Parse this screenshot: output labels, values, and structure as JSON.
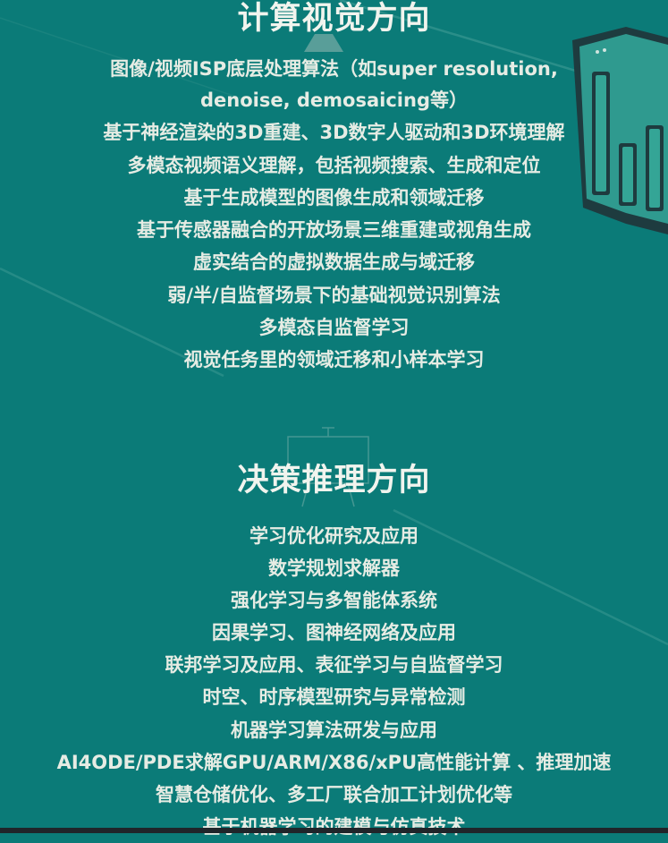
{
  "sections": [
    {
      "title": "计算视觉方向",
      "items": [
        "图像/视频ISP底层处理算法（如super resolution,",
        "denoise, demosaicing等）",
        "基于神经渲染的3D重建、3D数字人驱动和3D环境理解",
        "多模态视频语义理解，包括视频搜索、生成和定位",
        "基于生成模型的图像生成和领域迁移",
        "基于传感器融合的开放场景三维重建或视角生成",
        "虚实结合的虚拟数据生成与域迁移",
        "弱/半/自监督场景下的基础视觉识别算法",
        "多模态自监督学习",
        "视觉任务里的领域迁移和小样本学习"
      ]
    },
    {
      "title": "决策推理方向",
      "items": [
        "学习优化研究及应用",
        "数学规划求解器",
        "强化学习与多智能体系统",
        "因果学习、图神经网络及应用",
        "联邦学习及应用、表征学习与自监督学习",
        "时空、时序模型研究与异常检测",
        "机器学习算法研发与应用",
        "AI4ODE/PDE求解GPU/ARM/X86/xPU高性能计算 、推理加速",
        "智慧仓储优化、多工厂联合加工计划优化等",
        "基于机器学习的建模与仿真技术"
      ]
    }
  ],
  "colors": {
    "background": "#0b7b78",
    "text": "#e6ece4",
    "decor": "#2f9a8f"
  }
}
